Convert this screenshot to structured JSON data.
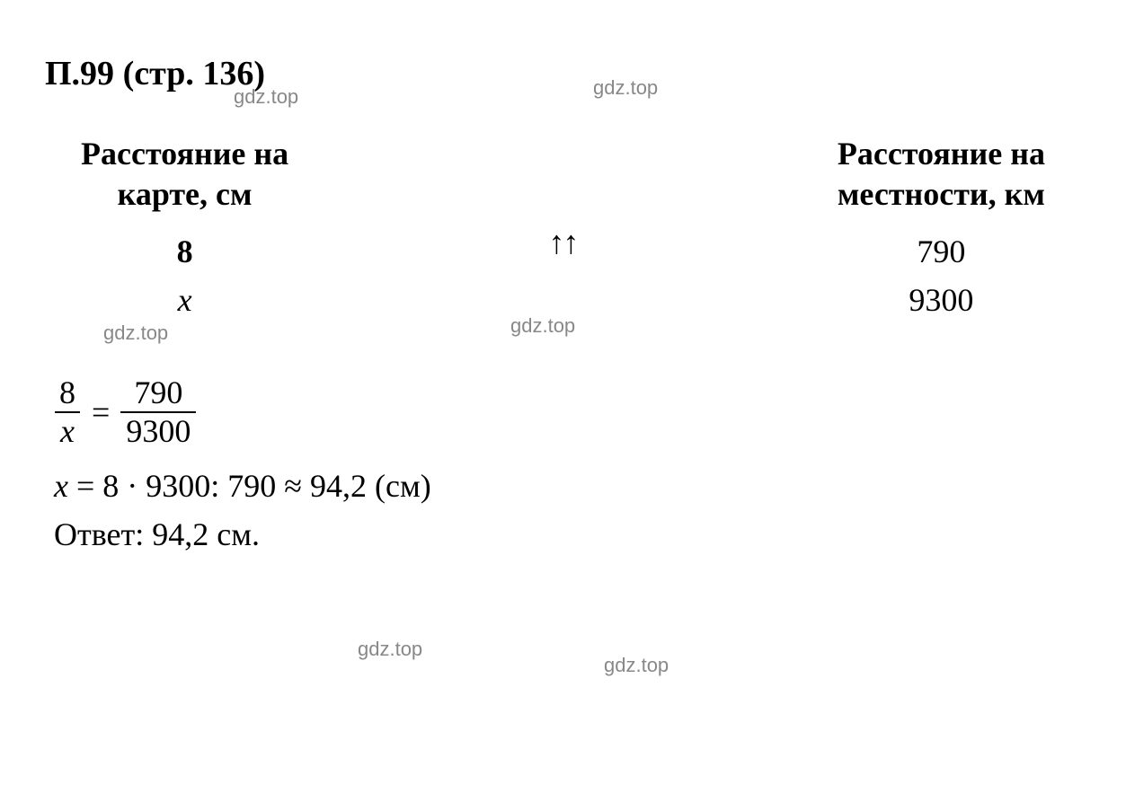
{
  "heading": {
    "problem_number": "П.99",
    "page_ref": "(стр. 136)"
  },
  "table": {
    "col1_header_line1": "Расстояние на",
    "col1_header_line2": "карте, см",
    "col1_row1": "8",
    "col1_row2": "x",
    "arrows": "↑↑",
    "col2_header_line1": "Расстояние на",
    "col2_header_line2": "местности, км",
    "col2_row1": "790",
    "col2_row2": "9300"
  },
  "equation": {
    "frac1_top": "8",
    "frac1_bottom": "x",
    "equals": "=",
    "frac2_top": "790",
    "frac2_bottom": "9300"
  },
  "calculation": {
    "var": "x",
    "expr": " = 8 · 9300: 790 ≈ 94,2 (см)"
  },
  "answer": {
    "label": "Ответ: ",
    "value": "94,2 см."
  },
  "watermarks": {
    "w1": "gdz.top",
    "w2": "gdz.top",
    "w3": "gdz.top",
    "w4": "gdz.top",
    "w5": "gdz.top",
    "w6": "gdz.top"
  },
  "colors": {
    "text": "#000000",
    "background": "#ffffff",
    "watermark": "#888888"
  },
  "typography": {
    "heading_fontsize": 38,
    "body_fontsize": 36,
    "watermark_fontsize": 22,
    "font_family": "Times New Roman"
  }
}
